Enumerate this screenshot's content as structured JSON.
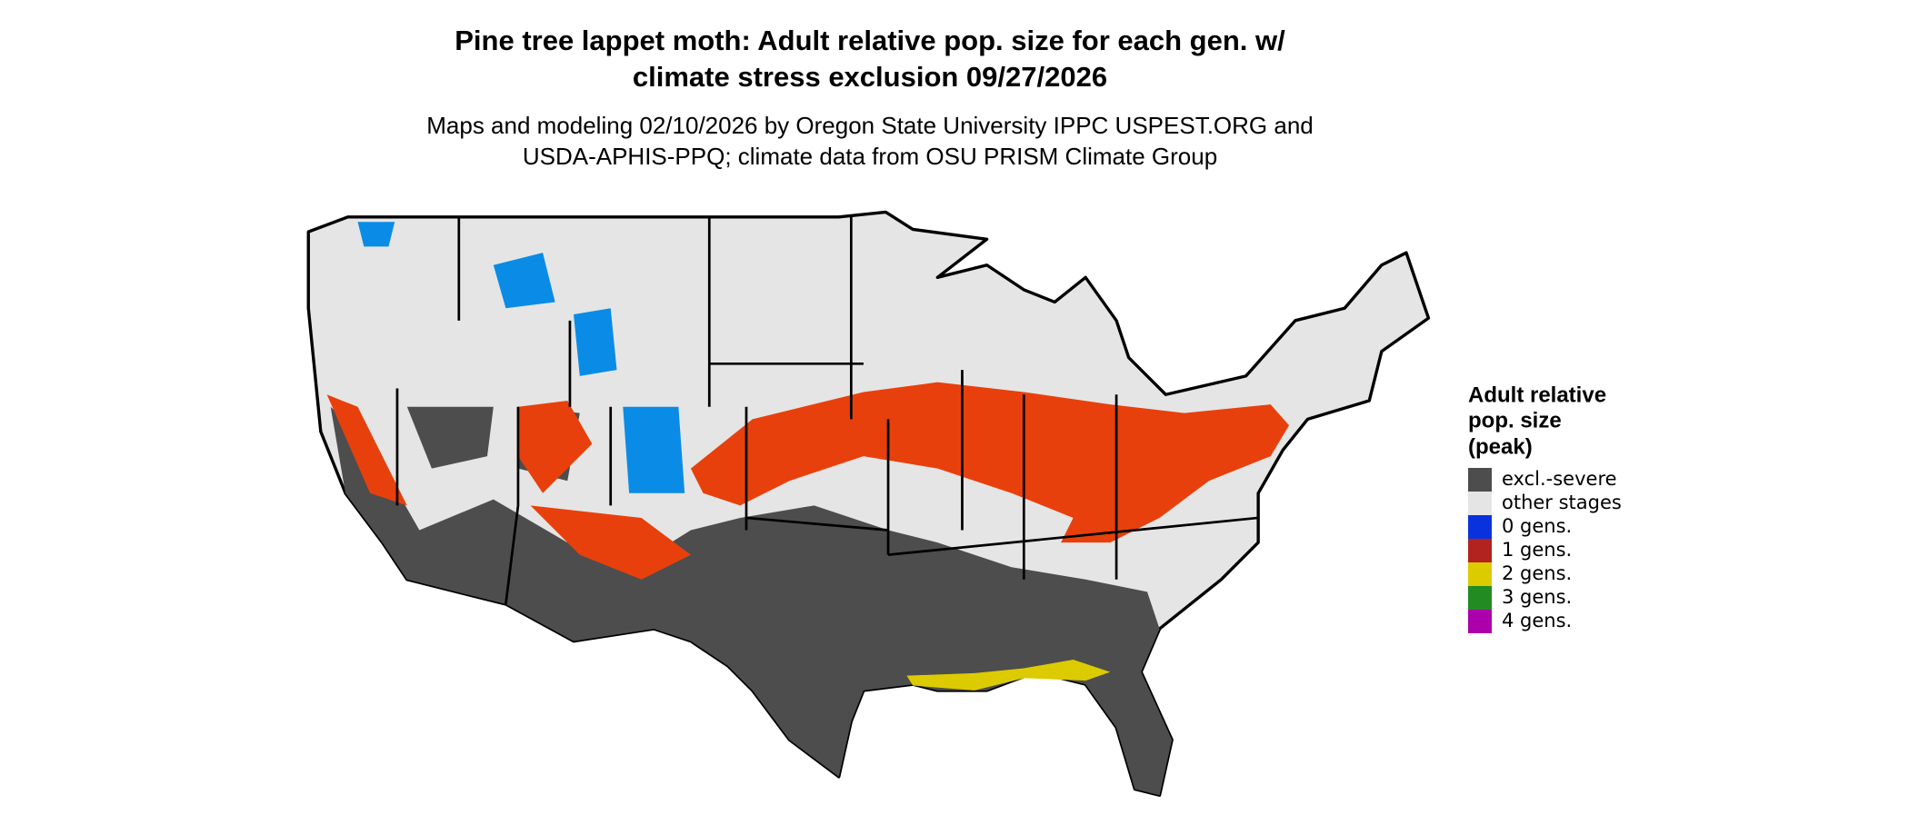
{
  "title": [
    "Pine tree lappet moth: Adult relative pop. size for each gen. w/",
    "climate stress exclusion 09/27/2026"
  ],
  "subtitle": [
    "Maps and modeling 02/10/2026 by Oregon State University IPPC USPEST.ORG and",
    "USDA-APHIS-PPQ; climate data from OSU PRISM Climate Group"
  ],
  "legend": {
    "title": [
      "Adult relative",
      "pop. size",
      "(peak)"
    ],
    "items": [
      {
        "label": "excl.-severe",
        "color": "#4d4d4d"
      },
      {
        "label": "other stages",
        "color": "#e5e5e5"
      },
      {
        "label": "0 gens.",
        "color": "#0a32dc"
      },
      {
        "label": "1 gens.",
        "color": "#b2221e"
      },
      {
        "label": "2 gens.",
        "color": "#dccb00"
      },
      {
        "label": "3 gens.",
        "color": "#228b22"
      },
      {
        "label": "4 gens.",
        "color": "#ab00ab"
      }
    ]
  }
}
